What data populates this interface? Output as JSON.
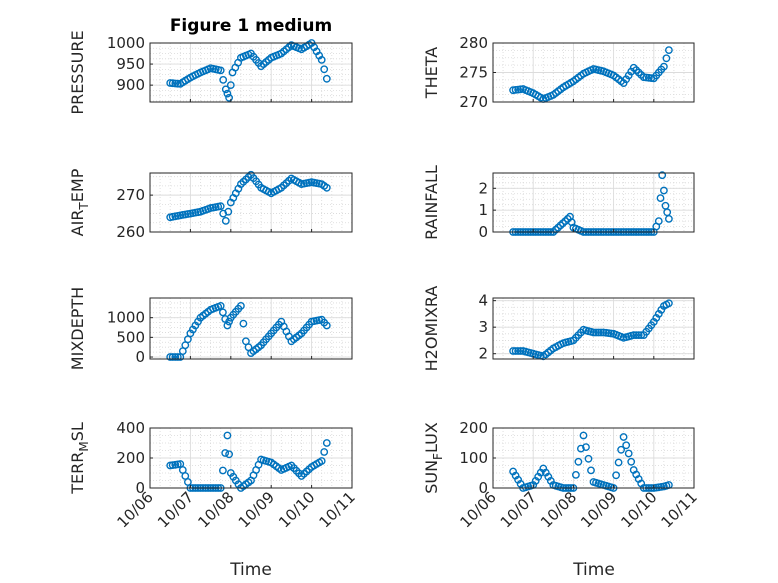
{
  "figure_title": "Figure 1 medium",
  "x_label": "Time",
  "marker_color": "#0072BD",
  "chart_data": [
    {
      "type": "scatter",
      "ylabel": "PRESSURE",
      "xlabel": "",
      "ylim": [
        860,
        1000
      ],
      "yticks": [
        900,
        950,
        1000
      ],
      "x": [
        "10/06 12:00",
        "10/06 18:00",
        "10/07 00:00",
        "10/07 06:00",
        "10/07 12:00",
        "10/07 18:00",
        "10/07 21:00",
        "10/07 23:00",
        "10/08 01:00",
        "10/08 06:00",
        "10/08 12:00",
        "10/08 18:00",
        "10/09 00:00",
        "10/09 06:00",
        "10/09 12:00",
        "10/09 18:00",
        "10/10 00:00",
        "10/10 06:00",
        "10/10 09:00"
      ],
      "y": [
        905,
        903,
        918,
        930,
        940,
        935,
        890,
        870,
        930,
        965,
        975,
        945,
        965,
        975,
        995,
        985,
        1000,
        960,
        915
      ]
    },
    {
      "type": "scatter",
      "ylabel": "THETA",
      "xlabel": "",
      "ylim": [
        270,
        280
      ],
      "yticks": [
        270,
        275,
        280
      ],
      "x": [
        "10/06 12:00",
        "10/06 18:00",
        "10/07 00:00",
        "10/07 06:00",
        "10/07 12:00",
        "10/07 18:00",
        "10/08 00:00",
        "10/08 06:00",
        "10/08 12:00",
        "10/08 18:00",
        "10/09 00:00",
        "10/09 06:00",
        "10/09 12:00",
        "10/09 18:00",
        "10/10 00:00",
        "10/10 06:00",
        "10/10 09:00"
      ],
      "y": [
        272,
        272.2,
        271.5,
        270.5,
        271.2,
        272.5,
        273.5,
        274.8,
        275.6,
        275.2,
        274.5,
        273.2,
        275.8,
        274.2,
        274,
        276,
        278.8
      ]
    },
    {
      "type": "scatter",
      "ylabel": "AIR_TEMP",
      "xlabel": "",
      "ylim": [
        260,
        276
      ],
      "yticks": [
        260,
        270
      ],
      "x": [
        "10/06 12:00",
        "10/06 18:00",
        "10/07 00:00",
        "10/07 06:00",
        "10/07 12:00",
        "10/07 18:00",
        "10/07 21:00",
        "10/08 00:00",
        "10/08 06:00",
        "10/08 12:00",
        "10/08 18:00",
        "10/09 00:00",
        "10/09 06:00",
        "10/09 12:00",
        "10/09 18:00",
        "10/10 00:00",
        "10/10 06:00",
        "10/10 09:00"
      ],
      "y": [
        264,
        264.5,
        265,
        265.5,
        266.5,
        267,
        263,
        268,
        273,
        275.5,
        272,
        270.5,
        272,
        274.5,
        273,
        273.5,
        273,
        272
      ]
    },
    {
      "type": "scatter",
      "ylabel": "RAINFALL",
      "xlabel": "",
      "ylim": [
        0,
        2.7
      ],
      "yticks": [
        0,
        1,
        2
      ],
      "x": [
        "10/06 12:00",
        "10/07 00:00",
        "10/07 12:00",
        "10/07 22:00",
        "10/08 00:00",
        "10/08 06:00",
        "10/08 12:00",
        "10/09 00:00",
        "10/09 12:00",
        "10/10 00:00",
        "10/10 03:00",
        "10/10 05:00",
        "10/10 07:00",
        "10/10 09:00"
      ],
      "y": [
        0,
        0,
        0,
        0.7,
        0.2,
        0,
        0,
        0,
        0,
        0,
        0.5,
        2.6,
        1.2,
        0.6
      ]
    },
    {
      "type": "scatter",
      "ylabel": "MIXDEPTH",
      "xlabel": "",
      "ylim": [
        -50,
        1500
      ],
      "yticks": [
        0,
        500,
        1000
      ],
      "x": [
        "10/06 12:00",
        "10/06 18:00",
        "10/07 00:00",
        "10/07 06:00",
        "10/07 12:00",
        "10/07 18:00",
        "10/07 22:00",
        "10/08 00:00",
        "10/08 06:00",
        "10/08 09:00",
        "10/08 12:00",
        "10/08 18:00",
        "10/09 00:00",
        "10/09 06:00",
        "10/09 12:00",
        "10/09 18:00",
        "10/10 00:00",
        "10/10 06:00",
        "10/10 09:00"
      ],
      "y": [
        0,
        0,
        600,
        1000,
        1200,
        1300,
        800,
        1000,
        1300,
        400,
        100,
        300,
        600,
        900,
        400,
        600,
        900,
        950,
        800
      ]
    },
    {
      "type": "scatter",
      "ylabel": "H2OMIXRA",
      "xlabel": "",
      "ylim": [
        1.8,
        4.1
      ],
      "yticks": [
        2,
        3,
        4
      ],
      "x": [
        "10/06 12:00",
        "10/06 18:00",
        "10/07 00:00",
        "10/07 06:00",
        "10/07 12:00",
        "10/07 18:00",
        "10/08 00:00",
        "10/08 06:00",
        "10/08 12:00",
        "10/08 18:00",
        "10/09 00:00",
        "10/09 06:00",
        "10/09 12:00",
        "10/09 18:00",
        "10/10 00:00",
        "10/10 06:00",
        "10/10 09:00"
      ],
      "y": [
        2.1,
        2.1,
        2.0,
        1.9,
        2.2,
        2.4,
        2.5,
        2.9,
        2.8,
        2.8,
        2.75,
        2.6,
        2.7,
        2.7,
        3.2,
        3.8,
        3.9
      ]
    },
    {
      "type": "scatter",
      "ylabel": "TERR_MSL",
      "xlabel": "Time",
      "ylim": [
        0,
        400
      ],
      "yticks": [
        0,
        200,
        400
      ],
      "xticks": [
        "10/06",
        "10/07",
        "10/08",
        "10/09",
        "10/10",
        "10/11"
      ],
      "x": [
        "10/06 12:00",
        "10/06 18:00",
        "10/07 00:00",
        "10/07 06:00",
        "10/07 12:00",
        "10/07 18:00",
        "10/07 22:00",
        "10/08 00:00",
        "10/08 06:00",
        "10/08 12:00",
        "10/08 18:00",
        "10/09 00:00",
        "10/09 06:00",
        "10/09 12:00",
        "10/09 18:00",
        "10/10 00:00",
        "10/10 06:00",
        "10/10 09:00"
      ],
      "y": [
        150,
        160,
        0,
        0,
        0,
        0,
        350,
        100,
        0,
        50,
        190,
        170,
        120,
        150,
        80,
        140,
        180,
        300
      ]
    },
    {
      "type": "scatter",
      "ylabel": "SUN_FLUX",
      "xlabel": "Time",
      "ylim": [
        0,
        200
      ],
      "yticks": [
        0,
        100,
        200
      ],
      "xticks": [
        "10/06",
        "10/07",
        "10/08",
        "10/09",
        "10/10",
        "10/11"
      ],
      "x": [
        "10/06 12:00",
        "10/06 18:00",
        "10/07 00:00",
        "10/07 06:00",
        "10/07 12:00",
        "10/07 18:00",
        "10/08 00:00",
        "10/08 06:00",
        "10/08 12:00",
        "10/08 18:00",
        "10/09 00:00",
        "10/09 06:00",
        "10/09 12:00",
        "10/09 18:00",
        "10/10 00:00",
        "10/10 06:00",
        "10/10 09:00"
      ],
      "y": [
        55,
        0,
        10,
        65,
        10,
        0,
        0,
        175,
        20,
        10,
        0,
        170,
        60,
        0,
        0,
        5,
        10
      ]
    }
  ]
}
